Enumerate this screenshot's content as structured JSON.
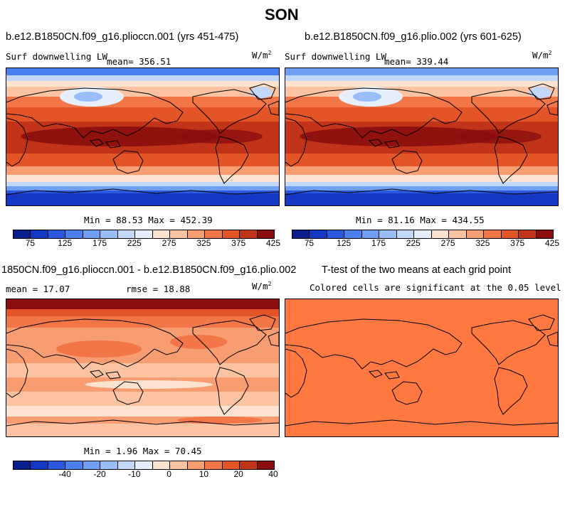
{
  "figure_title": "SON",
  "chart_data": [
    {
      "type": "heatmap",
      "title": "b.e12.B1850CN.f09_g16.pliocc n.001 (yrs 451-475)",
      "title_text": "b.e12.B1850CN.f09_g16.plioccn.001 (yrs 451-475)",
      "variable": "Surf downwelling LW",
      "mean_label": "mean= 356.51",
      "units_base": "W/m",
      "units_exp": "2",
      "stats": "Min =  88.53 Max = 452.39",
      "min": 88.53,
      "max": 452.39,
      "mean": 356.51,
      "colorbar_ticks": [
        "75",
        "125",
        "175",
        "225",
        "275",
        "325",
        "375",
        "425"
      ]
    },
    {
      "type": "heatmap",
      "title_text": "b.e12.B1850CN.f09_g16.plio.002 (yrs 601-625)",
      "variable": "Surf downwelling LW",
      "mean_label": "mean= 339.44",
      "units_base": "W/m",
      "units_exp": "2",
      "stats": "Min =  81.16 Max = 434.55",
      "min": 81.16,
      "max": 434.55,
      "mean": 339.44,
      "colorbar_ticks": [
        "75",
        "125",
        "175",
        "225",
        "275",
        "325",
        "375",
        "425"
      ]
    },
    {
      "type": "heatmap",
      "title_text": "1850CN.f09_g16.plioccn.001 - b.e12.B1850CN.f09_g16.plio.002",
      "mean_label": "mean =  17.07",
      "rmse_label": "rmse =  18.88",
      "units_base": "W/m",
      "units_exp": "2",
      "stats": "Min =   1.96 Max =  70.45",
      "min": 1.96,
      "max": 70.45,
      "mean": 17.07,
      "rmse": 18.88,
      "colorbar_ticks": [
        "-40",
        "-20",
        "-10",
        "0",
        "10",
        "20",
        "40"
      ]
    },
    {
      "type": "heatmap",
      "title_text": "T-test of the two means at each grid point",
      "subtitle": "Colored cells are significant at the 0.05 level"
    }
  ],
  "colors": {
    "abs_scale": [
      "#0a1f8c",
      "#1538c4",
      "#2a59e0",
      "#4a7ff0",
      "#6f9ff5",
      "#98bdf8",
      "#c2d8fb",
      "#e6eefc",
      "#fde2cf",
      "#fbc3a2",
      "#f89c72",
      "#f37648",
      "#e35426",
      "#c2341a",
      "#8b0e0e"
    ],
    "diff_scale": [
      "#0a1f8c",
      "#1538c4",
      "#2a59e0",
      "#4a7ff0",
      "#6f9ff5",
      "#98bdf8",
      "#c2d8fb",
      "#e6eefc",
      "#fde2cf",
      "#fbc3a2",
      "#f89c72",
      "#f37648",
      "#e35426",
      "#c2341a",
      "#8b0e0e"
    ],
    "ttest_fill": "#ff7840"
  }
}
